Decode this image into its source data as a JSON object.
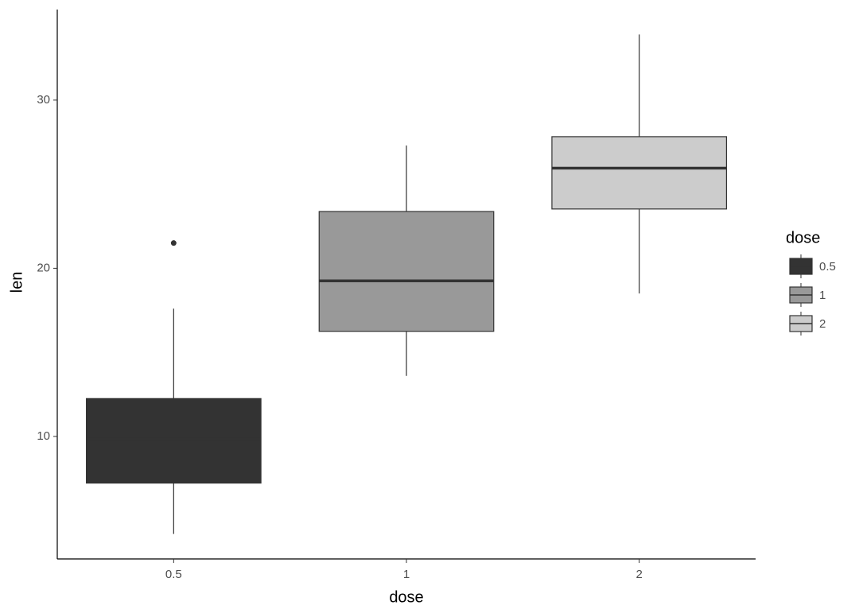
{
  "chart_data": {
    "type": "box",
    "x_label": "dose",
    "y_label": "len",
    "legend_title": "dose",
    "categories": [
      "0.5",
      "1",
      "2"
    ],
    "colors": [
      "#333333",
      "#999999",
      "#cccccc"
    ],
    "boxes": [
      {
        "min": 4.2,
        "q1": 7.225,
        "median": 9.85,
        "q3": 12.25,
        "max": 17.6,
        "outliers": [
          21.5
        ]
      },
      {
        "min": 13.6,
        "q1": 16.25,
        "median": 19.25,
        "q3": 23.375,
        "max": 27.3,
        "outliers": []
      },
      {
        "min": 18.5,
        "q1": 23.525,
        "median": 25.95,
        "q3": 27.825,
        "max": 33.9,
        "outliers": []
      }
    ],
    "ylim": [
      2.715,
      35.385
    ],
    "yticks": [
      10,
      20,
      30
    ],
    "grid": false
  }
}
